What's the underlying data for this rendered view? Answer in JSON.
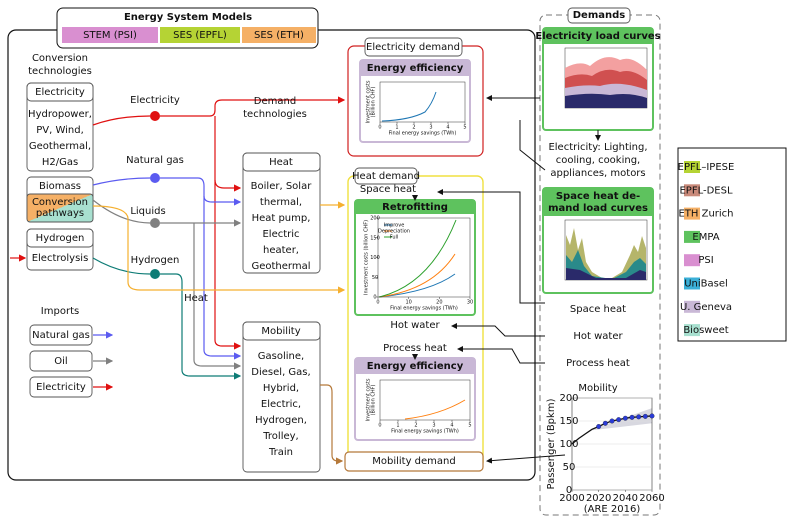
{
  "header": {
    "title": "Energy System Models",
    "models": [
      "STEM (PSI)",
      "SES (EPFL)",
      "SES (ETH)"
    ]
  },
  "conversion": {
    "heading": [
      "Conversion",
      "technologies"
    ],
    "electricity": {
      "title": "Electricity",
      "lines": [
        "Hydropower,",
        "PV, Wind,",
        "Geothermal,",
        "H2/Gas"
      ]
    },
    "biomass": "Biomass",
    "pathways": [
      "Conversion",
      "pathways"
    ],
    "hydrogen": {
      "title": "Hydrogen",
      "body": "Electrolysis"
    }
  },
  "imports": {
    "heading": "Imports",
    "items": [
      "Natural gas",
      "Oil",
      "Electricity"
    ]
  },
  "carriers": [
    "Electricity",
    "Natural gas",
    "Liquids",
    "Hydrogen",
    "Heat"
  ],
  "demand_tech": {
    "heading": [
      "Demand",
      "technologies"
    ],
    "heat": {
      "title": "Heat",
      "lines": [
        "Boiler, Solar",
        "thermal,",
        "Heat pump,",
        "Electric",
        "heater,",
        "Geothermal"
      ]
    },
    "mobility": {
      "title": "Mobility",
      "lines": [
        "Gasoline,",
        "Diesel, Gas,",
        "Hybrid,",
        "Electric,",
        "Hydrogen,",
        "Trolley,",
        "Train"
      ]
    }
  },
  "model_demands": {
    "electricity": {
      "title": "Electricity demand",
      "chart": {
        "title": "Energy efficiency",
        "color": "#1f77b4",
        "xlim": [
          0,
          5
        ],
        "xticks": [
          0,
          1,
          2,
          3,
          4,
          5
        ],
        "xlabel": "Final energy savings (TWh)",
        "ylabel": [
          "Investment costs",
          "(Billion CHF)"
        ]
      }
    },
    "heat": {
      "title": "Heat demand",
      "space_heat": "Space heat",
      "hot_water": "Hot water",
      "process_heat": "Process heat",
      "retrofitting": {
        "title": "Retrofitting",
        "xlim": [
          0,
          30
        ],
        "xticks": [
          0,
          10,
          20,
          30
        ],
        "ylim": [
          0,
          200
        ],
        "yticks": [
          0,
          50,
          100,
          150,
          200
        ],
        "xlabel": "Final energy savings (TWh)",
        "ylabel": "Investment costs (billion CHF)",
        "series": [
          {
            "name": "Improve",
            "color": "#1f77b4"
          },
          {
            "name": "Depreciation",
            "color": "#ff7f0e"
          },
          {
            "name": "Full",
            "color": "#2ca02c"
          }
        ]
      },
      "efficiency": {
        "title": "Energy efficiency",
        "color": "#ff7f0e",
        "xlim": [
          0,
          5
        ],
        "xticks": [
          0,
          1,
          2,
          3,
          4,
          5
        ],
        "xlabel": "Final energy savings (TWh)",
        "ylabel": [
          "Investment costs",
          "(Billion CHF)"
        ]
      }
    },
    "mobility": "Mobility demand"
  },
  "demands": {
    "title": "Demands",
    "elec_curves": "Electricity load curves",
    "elec_text": [
      "Electricity: Lighting,",
      "cooling, cooking,",
      "appliances, motors"
    ],
    "space_curves": [
      "Space heat de-",
      "mand load curves"
    ],
    "items": [
      "Space heat",
      "Hot water",
      "Process heat"
    ],
    "mobility": {
      "title": "Mobility",
      "source": "(ARE 2016)",
      "chart": {
        "type": "line",
        "ylabel": "Passenger (Bpkm)",
        "xlim": [
          2000,
          2060
        ],
        "xticks": [
          2000,
          2020,
          2040,
          2060
        ],
        "ylim": [
          0,
          200
        ],
        "yticks": [
          0,
          50,
          100,
          150,
          200
        ],
        "x": [
          2000,
          2005,
          2010,
          2015,
          2020,
          2025,
          2030,
          2035,
          2040,
          2045,
          2050,
          2055,
          2060
        ],
        "series": [
          {
            "color": "#2a3bd6",
            "values": [
              100,
              112,
              122,
              132,
              138,
              145,
              150,
              153,
              156,
              158,
              159,
              160,
              161
            ]
          }
        ]
      }
    }
  },
  "legend": [
    {
      "name": "EPFL–IPESE",
      "color": "#b5d334"
    },
    {
      "name": "EPFL-DESL",
      "color": "#c98a7a"
    },
    {
      "name": "ETH Zurich",
      "color": "#f5b066"
    },
    {
      "name": "EMPA",
      "color": "#5ec25e"
    },
    {
      "name": "PSI",
      "color": "#d98fd0"
    },
    {
      "name": "UniBasel",
      "color": "#3bb0d8"
    },
    {
      "name": "U. Geneva",
      "color": "#c9b8d6"
    },
    {
      "name": "Biosweet",
      "color": "#a8e0d0"
    }
  ]
}
